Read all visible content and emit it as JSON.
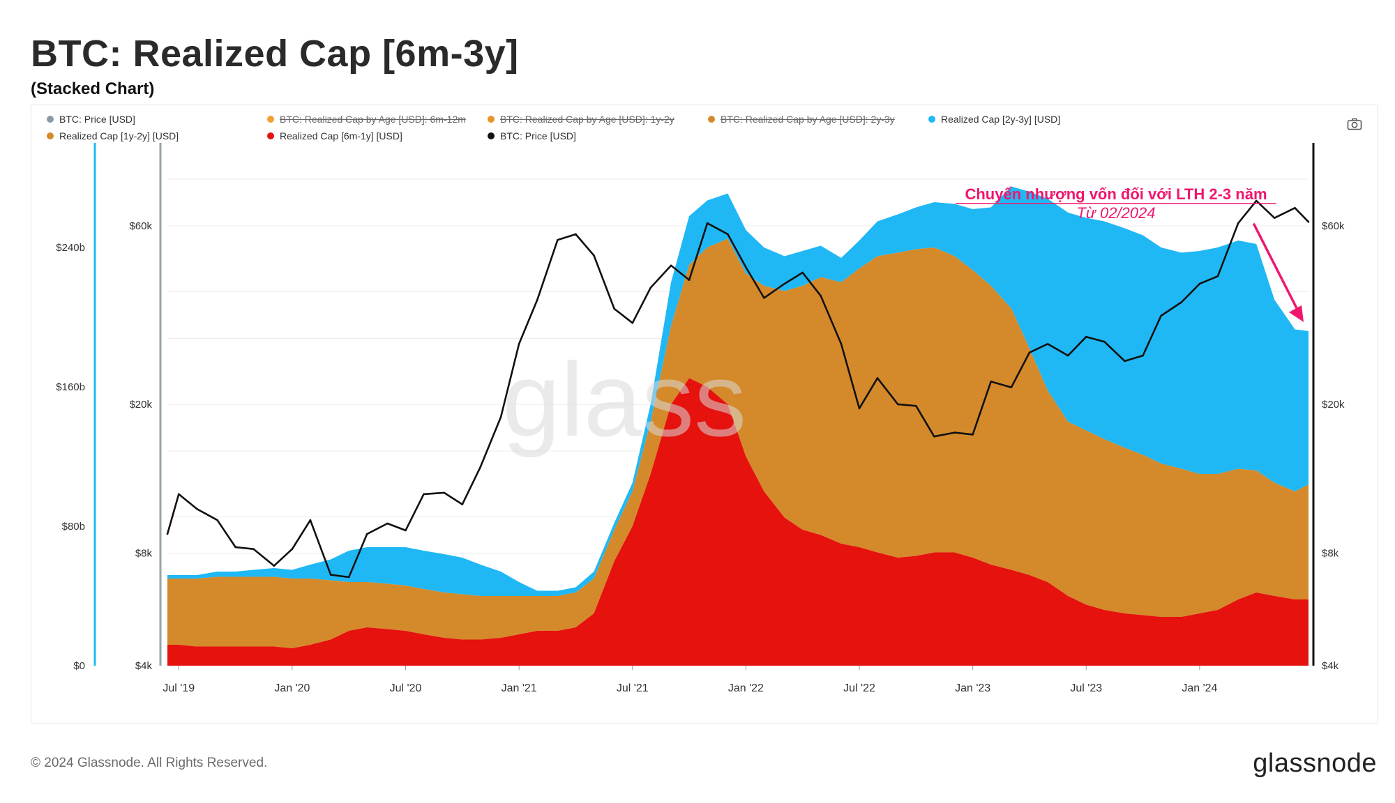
{
  "header": {
    "title": "BTC: Realized Cap [6m-3y]",
    "subtitle": "(Stacked Chart)"
  },
  "legend": [
    {
      "label": "BTC: Price [USD]",
      "color": "#8a9aa6",
      "disabled": false
    },
    {
      "label": "BTC: Realized Cap by Age [USD]: 6m-12m",
      "color": "#f0a030",
      "disabled": true
    },
    {
      "label": "BTC: Realized Cap by Age [USD]: 1y-2y",
      "color": "#e8922a",
      "disabled": true
    },
    {
      "label": "BTC: Realized Cap by Age [USD]: 2y-3y",
      "color": "#d48a2a",
      "disabled": true
    },
    {
      "label": "Realized Cap [2y-3y] [USD]",
      "color": "#1fb8f5",
      "disabled": false
    },
    {
      "label": "Realized Cap [1y-2y] [USD]",
      "color": "#d48a2a",
      "disabled": false
    },
    {
      "label": "Realized Cap [6m-1y] [USD]",
      "color": "#e5120e",
      "disabled": false
    },
    {
      "label": "BTC: Price [USD]",
      "color": "#111111",
      "disabled": false
    }
  ],
  "footer": {
    "copyright": "© 2024 Glassnode. All Rights Reserved.",
    "brand": "glassnode"
  },
  "watermark": "glass",
  "chart_data": {
    "type": "area",
    "stacked": true,
    "title": "BTC: Realized Cap [6m-3y]",
    "subtitle": "(Stacked Chart)",
    "x_range": [
      2019.45,
      2024.48
    ],
    "x_ticks": [
      {
        "x": 2019.5,
        "label": "Jul '19"
      },
      {
        "x": 2020.0,
        "label": "Jan '20"
      },
      {
        "x": 2020.5,
        "label": "Jul '20"
      },
      {
        "x": 2021.0,
        "label": "Jan '21"
      },
      {
        "x": 2021.5,
        "label": "Jul '21"
      },
      {
        "x": 2022.0,
        "label": "Jan '22"
      },
      {
        "x": 2022.5,
        "label": "Jul '22"
      },
      {
        "x": 2023.0,
        "label": "Jan '23"
      },
      {
        "x": 2023.5,
        "label": "Jul '23"
      },
      {
        "x": 2024.0,
        "label": "Jan '24"
      }
    ],
    "y_left_cap": {
      "min": 0,
      "max": 300,
      "unit": "billion USD",
      "ticks": [
        {
          "v": 0,
          "label": "$0"
        },
        {
          "v": 80,
          "label": "$80b"
        },
        {
          "v": 160,
          "label": "$160b"
        },
        {
          "v": 240,
          "label": "$240b"
        }
      ]
    },
    "y_price": {
      "scale": "log",
      "min": 4000,
      "max": 100000,
      "ticks": [
        {
          "v": 4000,
          "label": "$4k"
        },
        {
          "v": 8000,
          "label": "$8k"
        },
        {
          "v": 20000,
          "label": "$20k"
        },
        {
          "v": 60000,
          "label": "$60k"
        }
      ]
    },
    "x": [
      2019.45,
      2019.5,
      2019.58,
      2019.67,
      2019.75,
      2019.83,
      2019.92,
      2020.0,
      2020.08,
      2020.17,
      2020.25,
      2020.33,
      2020.42,
      2020.5,
      2020.58,
      2020.67,
      2020.75,
      2020.83,
      2020.92,
      2021.0,
      2021.08,
      2021.17,
      2021.25,
      2021.33,
      2021.42,
      2021.5,
      2021.58,
      2021.67,
      2021.75,
      2021.83,
      2021.92,
      2022.0,
      2022.08,
      2022.17,
      2022.25,
      2022.33,
      2022.42,
      2022.5,
      2022.58,
      2022.67,
      2022.75,
      2022.83,
      2022.92,
      2023.0,
      2023.08,
      2023.17,
      2023.25,
      2023.33,
      2023.42,
      2023.5,
      2023.58,
      2023.67,
      2023.75,
      2023.83,
      2023.92,
      2024.0,
      2024.08,
      2024.17,
      2024.25,
      2024.33,
      2024.42,
      2024.48
    ],
    "series": [
      {
        "name": "Realized Cap [6m-1y] [USD]",
        "color": "#e5120e",
        "values": [
          12,
          12,
          11,
          11,
          11,
          11,
          11,
          10,
          12,
          15,
          20,
          22,
          21,
          20,
          18,
          16,
          15,
          15,
          16,
          18,
          20,
          20,
          22,
          30,
          60,
          80,
          110,
          150,
          165,
          160,
          150,
          120,
          100,
          85,
          78,
          75,
          70,
          68,
          65,
          62,
          63,
          65,
          65,
          62,
          58,
          55,
          52,
          48,
          40,
          35,
          32,
          30,
          29,
          28,
          28,
          30,
          32,
          38,
          42,
          40,
          38,
          38
        ]
      },
      {
        "name": "Realized Cap [1y-2y] [USD]",
        "color": "#d48a2a",
        "values": [
          38,
          38,
          39,
          40,
          40,
          40,
          40,
          40,
          38,
          34,
          28,
          26,
          26,
          26,
          26,
          26,
          26,
          25,
          24,
          22,
          20,
          20,
          20,
          20,
          18,
          20,
          30,
          45,
          65,
          80,
          95,
          105,
          118,
          130,
          140,
          148,
          150,
          160,
          170,
          175,
          176,
          175,
          170,
          165,
          160,
          150,
          130,
          110,
          100,
          100,
          98,
          95,
          92,
          88,
          85,
          80,
          78,
          75,
          70,
          65,
          62,
          66
        ]
      },
      {
        "name": "Realized Cap [2y-3y] [USD]",
        "color": "#1fb8f5",
        "values": [
          2,
          2,
          2,
          3,
          3,
          4,
          5,
          5,
          8,
          12,
          18,
          20,
          21,
          22,
          22,
          22,
          21,
          18,
          14,
          8,
          3,
          3,
          3,
          4,
          4,
          5,
          10,
          25,
          28,
          27,
          26,
          25,
          22,
          20,
          20,
          18,
          14,
          16,
          20,
          22,
          24,
          26,
          30,
          35,
          45,
          70,
          90,
          110,
          120,
          122,
          125,
          126,
          126,
          124,
          124,
          128,
          130,
          131,
          130,
          105,
          93,
          88
        ]
      },
      {
        "name": "BTC: Price [USD]",
        "color": "#111111",
        "axis": "price",
        "values": [
          9000,
          11500,
          10500,
          9800,
          8300,
          8200,
          7400,
          8200,
          9800,
          7000,
          6900,
          9000,
          9600,
          9200,
          11500,
          11600,
          10800,
          13600,
          18500,
          29000,
          38000,
          55000,
          57000,
          50000,
          36000,
          33000,
          41000,
          47000,
          43000,
          61000,
          57000,
          46500,
          38500,
          42000,
          45000,
          39000,
          29000,
          19500,
          23500,
          20000,
          19800,
          16400,
          16800,
          16600,
          23000,
          22200,
          27500,
          29000,
          27000,
          30300,
          29400,
          26100,
          27000,
          34500,
          37500,
          42000,
          44000,
          61000,
          70000,
          63000,
          67000,
          61500
        ]
      }
    ],
    "annotations": [
      {
        "text": "Chuyển nhượng vốn đối với LTH 2-3 năm",
        "color": "#f0166e"
      },
      {
        "text": "Từ 02/2024",
        "color": "#f0166e",
        "style": "italic"
      }
    ]
  }
}
